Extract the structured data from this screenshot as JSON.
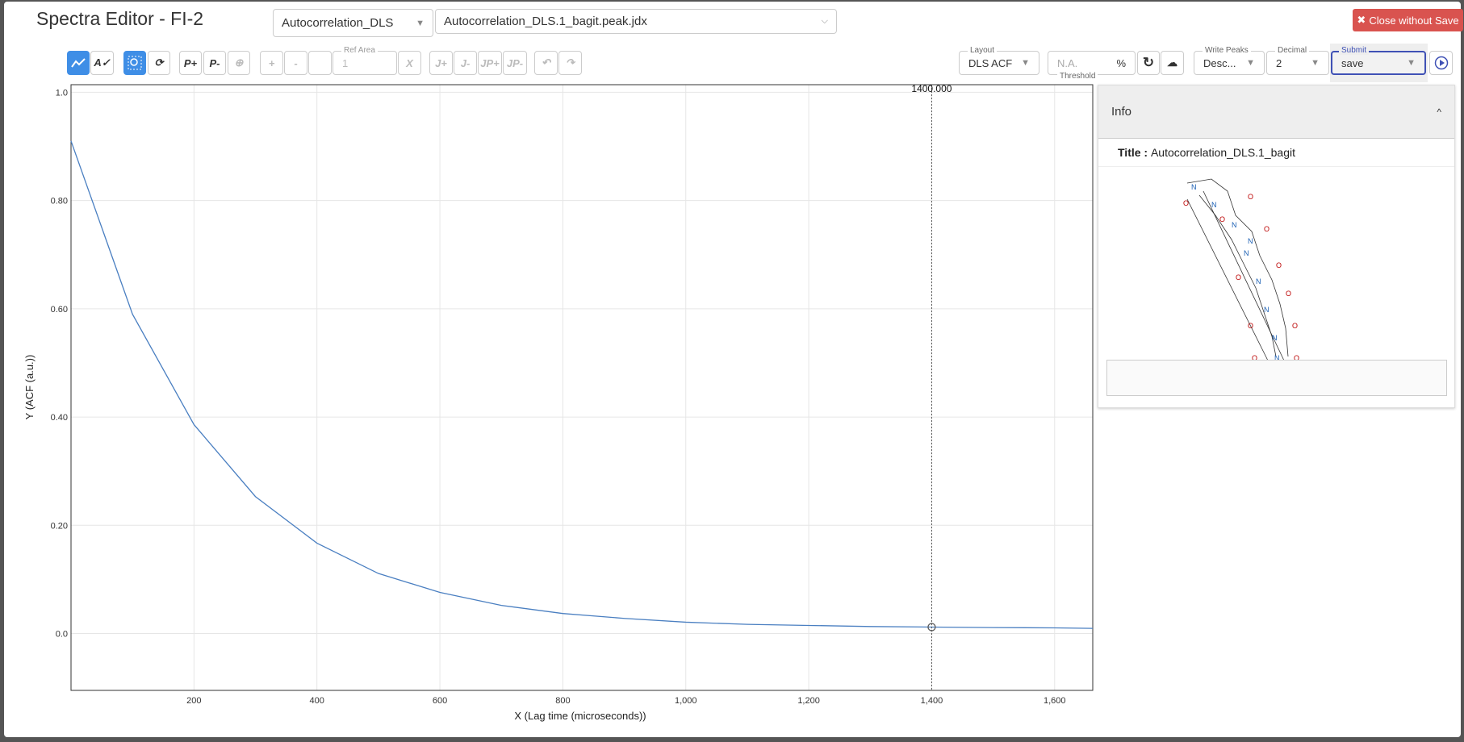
{
  "header": {
    "title": "Spectra Editor - FI-2",
    "spectrum_select": "Autocorrelation_DLS",
    "file_select": "Autocorrelation_DLS.1_bagit.peak.jdx",
    "close_label": "Close without Save",
    "close_icon": "times-icon"
  },
  "toolbar": {
    "left": [
      {
        "icon": "line-chart-icon",
        "active": true
      },
      {
        "icon": "spell-check-icon"
      },
      {
        "icon": "zoom-box-icon",
        "active": true
      },
      {
        "icon": "zoom-reset-icon"
      },
      {
        "label": "P+"
      },
      {
        "label": "P-"
      },
      {
        "icon": "pin-add-icon",
        "disabled": true
      },
      {
        "label": "+",
        "disabled": true
      },
      {
        "label": "-",
        "disabled": true
      },
      {
        "label": "",
        "disabled": true
      }
    ],
    "ref_area_label": "Ref Area",
    "ref_area_value": "1",
    "x_label": "X",
    "j_buttons": [
      "J+",
      "J-",
      "JP+",
      "JP-"
    ],
    "layout_label": "Layout",
    "layout_value": "DLS ACF",
    "threshold_label": "Threshold",
    "threshold_placeholder": "N.A.",
    "threshold_unit": "%",
    "write_peaks_label": "Write Peaks",
    "write_peaks_value": "Desc...",
    "decimal_label": "Decimal",
    "decimal_value": "2",
    "submit_label": "Submit",
    "submit_value": "save"
  },
  "info": {
    "heading": "Info",
    "title_label": "Title :",
    "title_value": "Autocorrelation_DLS.1_bagit"
  },
  "chart_data": {
    "type": "line",
    "xlabel": "X (Lag time (microseconds))",
    "ylabel": "Y (ACF (a.u.))",
    "xlim": [
      0,
      1662
    ],
    "ylim": [
      -0.105,
      1.014
    ],
    "grid": true,
    "color": "#4a7fc1",
    "x_ticks": [
      "200",
      "400",
      "600",
      "800",
      "1,000",
      "1,200",
      "1,400",
      "1,600"
    ],
    "y_ticks": [
      "0.0",
      "0.20",
      "0.40",
      "0.60",
      "0.80",
      "1.0"
    ],
    "x": [
      0,
      100,
      200,
      300,
      400,
      500,
      600,
      700,
      800,
      900,
      1000,
      1100,
      1200,
      1300,
      1400,
      1500,
      1600,
      1662
    ],
    "y": [
      0.91,
      0.59,
      0.386,
      0.253,
      0.167,
      0.111,
      0.076,
      0.052,
      0.037,
      0.028,
      0.021,
      0.017,
      0.015,
      0.013,
      0.012,
      0.011,
      0.0105,
      0.0095
    ],
    "cursor": {
      "x": 1400,
      "y": 0.012,
      "label": "1400.000"
    }
  }
}
